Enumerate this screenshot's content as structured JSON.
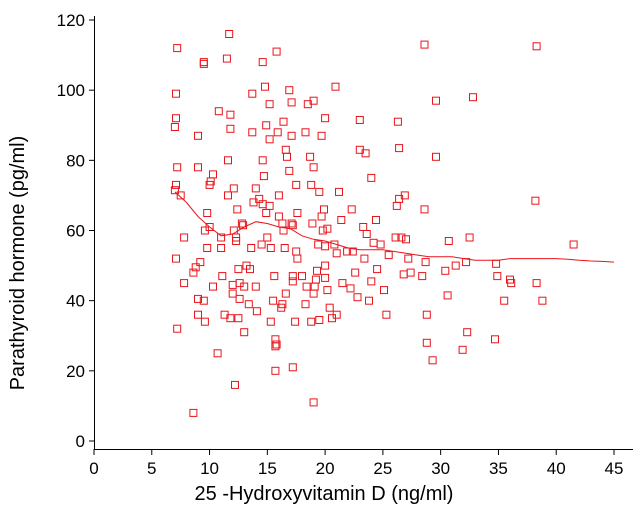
{
  "chart_data": {
    "type": "scatter",
    "title": "",
    "xlabel": "25 -Hydroxyvitamin D (ng/ml)",
    "ylabel": "Parathyroid hormone (pg/ml)",
    "xlim": [
      0,
      45
    ],
    "ylim": [
      0,
      120
    ],
    "xticks": [
      "0",
      "5",
      "10",
      "15",
      "20",
      "25",
      "30",
      "35",
      "40",
      "45"
    ],
    "yticks": [
      "0",
      "20",
      "40",
      "60",
      "80",
      "100",
      "120"
    ],
    "grid": false,
    "legend": "none",
    "colors": {
      "points": "#e8141b",
      "trend": "#e8141b",
      "axes": "#000000"
    },
    "series": [
      {
        "marker": "square",
        "points": [
          [
            7.2,
            112
          ],
          [
            7.1,
            99
          ],
          [
            7.1,
            92
          ],
          [
            7,
            89.5
          ],
          [
            7.2,
            78
          ],
          [
            7.1,
            73
          ],
          [
            7,
            71.5
          ],
          [
            7.5,
            70
          ],
          [
            7.1,
            52
          ],
          [
            7.2,
            32
          ],
          [
            7.8,
            45
          ],
          [
            7.8,
            58
          ],
          [
            8.6,
            8
          ],
          [
            8.6,
            48
          ],
          [
            8.8,
            49.5
          ],
          [
            9,
            78
          ],
          [
            9,
            87
          ],
          [
            9,
            40.5
          ],
          [
            9,
            36
          ],
          [
            9.2,
            51
          ],
          [
            9.5,
            108
          ],
          [
            9.5,
            107.5
          ],
          [
            9.6,
            60
          ],
          [
            9.8,
            55
          ],
          [
            9.8,
            65
          ],
          [
            10,
            61
          ],
          [
            10,
            73
          ],
          [
            9.5,
            40
          ],
          [
            9.6,
            34
          ],
          [
            10.1,
            74
          ],
          [
            10.3,
            76
          ],
          [
            10.3,
            44
          ],
          [
            10.8,
            94
          ],
          [
            10.7,
            25
          ],
          [
            11,
            58
          ],
          [
            11,
            55
          ],
          [
            11.1,
            47
          ],
          [
            11.3,
            36
          ],
          [
            11.5,
            109
          ],
          [
            11.7,
            116
          ],
          [
            11.8,
            89
          ],
          [
            11.8,
            93
          ],
          [
            11.6,
            80
          ],
          [
            11.6,
            70
          ],
          [
            11.8,
            35
          ],
          [
            12,
            42
          ],
          [
            12,
            44.5
          ],
          [
            12.1,
            60
          ],
          [
            12.1,
            72
          ],
          [
            12.3,
            57
          ],
          [
            12.2,
            16
          ],
          [
            12.4,
            66
          ],
          [
            12.3,
            58
          ],
          [
            12.5,
            49
          ],
          [
            12.5,
            35
          ],
          [
            12.6,
            45
          ],
          [
            12.6,
            40.5
          ],
          [
            12.8,
            62
          ],
          [
            12.9,
            61.5
          ],
          [
            13,
            44
          ],
          [
            13,
            31
          ],
          [
            13.2,
            50
          ],
          [
            13.4,
            39
          ],
          [
            13.5,
            49
          ],
          [
            13.6,
            55
          ],
          [
            13.7,
            99
          ],
          [
            13.7,
            88
          ],
          [
            13.8,
            68
          ],
          [
            14,
            72
          ],
          [
            14,
            44
          ],
          [
            14.1,
            37
          ],
          [
            14.3,
            69
          ],
          [
            14.5,
            56
          ],
          [
            14.6,
            67.5
          ],
          [
            14.6,
            80
          ],
          [
            14.7,
            75.5
          ],
          [
            14.8,
            101
          ],
          [
            14.9,
            90
          ],
          [
            14.6,
            108
          ],
          [
            14.9,
            65
          ],
          [
            15.2,
            96
          ],
          [
            15.2,
            86
          ],
          [
            15.2,
            67
          ],
          [
            15,
            58
          ],
          [
            15.3,
            55
          ],
          [
            15.3,
            34
          ],
          [
            15.5,
            40
          ],
          [
            15.6,
            47
          ],
          [
            15.7,
            20
          ],
          [
            15.7,
            27
          ],
          [
            15.7,
            29
          ],
          [
            15.8,
            27.5
          ],
          [
            15.8,
            111
          ],
          [
            15.9,
            88
          ],
          [
            16,
            70
          ],
          [
            16,
            64
          ],
          [
            16.3,
            62
          ],
          [
            16.4,
            60
          ],
          [
            16.5,
            55
          ],
          [
            16.6,
            42
          ],
          [
            16.3,
            39
          ],
          [
            16.2,
            38
          ],
          [
            16.4,
            91
          ],
          [
            16.6,
            83
          ],
          [
            16.7,
            81
          ],
          [
            16.9,
            77
          ],
          [
            16.9,
            100
          ],
          [
            17.1,
            96.5
          ],
          [
            17.1,
            87
          ],
          [
            17.1,
            62
          ],
          [
            17.2,
            61.5
          ],
          [
            17.2,
            47
          ],
          [
            17.2,
            45.5
          ],
          [
            17.2,
            21
          ],
          [
            17.4,
            34
          ],
          [
            17.5,
            73
          ],
          [
            17.6,
            65
          ],
          [
            17.6,
            52
          ],
          [
            17.5,
            54
          ],
          [
            18,
            47
          ],
          [
            18.3,
            88
          ],
          [
            18.3,
            39
          ],
          [
            18.4,
            44
          ],
          [
            18.5,
            96
          ],
          [
            18.7,
            81
          ],
          [
            18.8,
            73
          ],
          [
            18.8,
            34
          ],
          [
            18.9,
            62
          ],
          [
            19,
            97
          ],
          [
            19,
            78
          ],
          [
            19,
            11
          ],
          [
            19,
            42
          ],
          [
            19.1,
            44
          ],
          [
            19.2,
            46
          ],
          [
            19.3,
            48.5
          ],
          [
            19.4,
            56
          ],
          [
            19.5,
            71
          ],
          [
            19.5,
            34.5
          ],
          [
            19.7,
            87
          ],
          [
            19.7,
            64
          ],
          [
            19.8,
            60
          ],
          [
            19.9,
            66
          ],
          [
            20,
            92
          ],
          [
            20,
            55.5
          ],
          [
            20,
            50
          ],
          [
            20,
            46.5
          ],
          [
            20.2,
            60.5
          ],
          [
            20.2,
            43
          ],
          [
            20.4,
            38
          ],
          [
            20.6,
            35
          ],
          [
            20.8,
            56
          ],
          [
            20.9,
            101
          ],
          [
            21,
            53.5
          ],
          [
            21,
            36
          ],
          [
            21.2,
            71
          ],
          [
            21.4,
            63
          ],
          [
            21.5,
            45
          ],
          [
            21.9,
            54
          ],
          [
            22.2,
            43.5
          ],
          [
            22.3,
            66
          ],
          [
            22.4,
            54
          ],
          [
            22.6,
            48
          ],
          [
            22.8,
            41
          ],
          [
            23,
            83
          ],
          [
            23,
            91.5
          ],
          [
            23.3,
            61
          ],
          [
            23.4,
            52
          ],
          [
            23.5,
            82
          ],
          [
            23.6,
            59
          ],
          [
            23.8,
            40
          ],
          [
            24,
            45.5
          ],
          [
            24,
            75
          ],
          [
            24.2,
            56.5
          ],
          [
            24.4,
            63
          ],
          [
            24.5,
            49
          ],
          [
            24.8,
            56
          ],
          [
            25.1,
            43
          ],
          [
            25.3,
            36
          ],
          [
            25.5,
            53
          ],
          [
            26.1,
            58
          ],
          [
            26.2,
            67
          ],
          [
            26.3,
            91
          ],
          [
            26.4,
            83.5
          ],
          [
            26.4,
            69
          ],
          [
            26.6,
            58
          ],
          [
            26.8,
            47.5
          ],
          [
            26.9,
            70
          ],
          [
            27,
            57.5
          ],
          [
            27.2,
            52
          ],
          [
            27.4,
            48
          ],
          [
            28.4,
            47
          ],
          [
            28.6,
            113
          ],
          [
            28.6,
            66
          ],
          [
            28.7,
            51
          ],
          [
            28.8,
            36
          ],
          [
            28.8,
            28
          ],
          [
            29.3,
            23
          ],
          [
            29.6,
            97
          ],
          [
            29.6,
            81
          ],
          [
            30.4,
            48.5
          ],
          [
            30.6,
            41.5
          ],
          [
            30.7,
            57
          ],
          [
            31.3,
            50
          ],
          [
            31.9,
            26
          ],
          [
            32.2,
            51
          ],
          [
            32.3,
            31
          ],
          [
            32.5,
            58
          ],
          [
            32.8,
            98
          ],
          [
            34.7,
            29
          ],
          [
            34.8,
            50.5
          ],
          [
            34.9,
            47
          ],
          [
            35.5,
            40
          ],
          [
            36,
            46
          ],
          [
            36.1,
            45
          ],
          [
            38.2,
            68.5
          ],
          [
            38.3,
            112.5
          ],
          [
            38.3,
            45
          ],
          [
            38.8,
            40
          ],
          [
            41.5,
            56
          ]
        ]
      }
    ],
    "trend_line": [
      [
        7,
        71
      ],
      [
        8,
        68
      ],
      [
        9,
        64
      ],
      [
        10,
        61
      ],
      [
        11,
        58.5
      ],
      [
        12,
        59
      ],
      [
        13,
        61
      ],
      [
        14,
        62.5
      ],
      [
        15,
        62
      ],
      [
        16,
        61
      ],
      [
        17,
        60.5
      ],
      [
        18,
        58.5
      ],
      [
        19,
        57.5
      ],
      [
        20,
        57
      ],
      [
        21,
        56
      ],
      [
        22,
        55
      ],
      [
        23,
        54.5
      ],
      [
        24,
        54.5
      ],
      [
        25,
        54.5
      ],
      [
        26,
        54
      ],
      [
        27,
        53.5
      ],
      [
        28,
        53
      ],
      [
        29,
        52.5
      ],
      [
        30,
        52.5
      ],
      [
        31,
        52.5
      ],
      [
        32,
        52
      ],
      [
        33,
        51.5
      ],
      [
        34,
        51.5
      ],
      [
        35,
        51.5
      ],
      [
        36,
        52
      ],
      [
        37,
        52
      ],
      [
        38,
        52
      ],
      [
        39,
        52
      ],
      [
        40,
        52
      ],
      [
        41,
        51.8
      ],
      [
        42,
        51.5
      ],
      [
        43,
        51.3
      ],
      [
        44,
        51.2
      ],
      [
        45,
        51
      ]
    ]
  }
}
